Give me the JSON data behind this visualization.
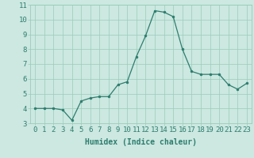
{
  "x": [
    0,
    1,
    2,
    3,
    4,
    5,
    6,
    7,
    8,
    9,
    10,
    11,
    12,
    13,
    14,
    15,
    16,
    17,
    18,
    19,
    20,
    21,
    22,
    23
  ],
  "y": [
    4.0,
    4.0,
    4.0,
    3.9,
    3.2,
    4.5,
    4.7,
    4.8,
    4.8,
    5.6,
    5.8,
    7.5,
    8.9,
    10.6,
    10.5,
    10.2,
    8.0,
    6.5,
    6.3,
    6.3,
    6.3,
    5.6,
    5.3,
    5.7
  ],
  "xlabel": "Humidex (Indice chaleur)",
  "ylim": [
    3,
    11
  ],
  "xlim": [
    -0.5,
    23.5
  ],
  "yticks": [
    3,
    4,
    5,
    6,
    7,
    8,
    9,
    10,
    11
  ],
  "xticks": [
    0,
    1,
    2,
    3,
    4,
    5,
    6,
    7,
    8,
    9,
    10,
    11,
    12,
    13,
    14,
    15,
    16,
    17,
    18,
    19,
    20,
    21,
    22,
    23
  ],
  "line_color": "#2d7d6e",
  "marker_color": "#2d7d6e",
  "bg_color": "#cce8e0",
  "grid_color": "#99ccbb",
  "label_color": "#2d7d6e",
  "font_size_xlabel": 7,
  "font_size_ticks": 6.5
}
